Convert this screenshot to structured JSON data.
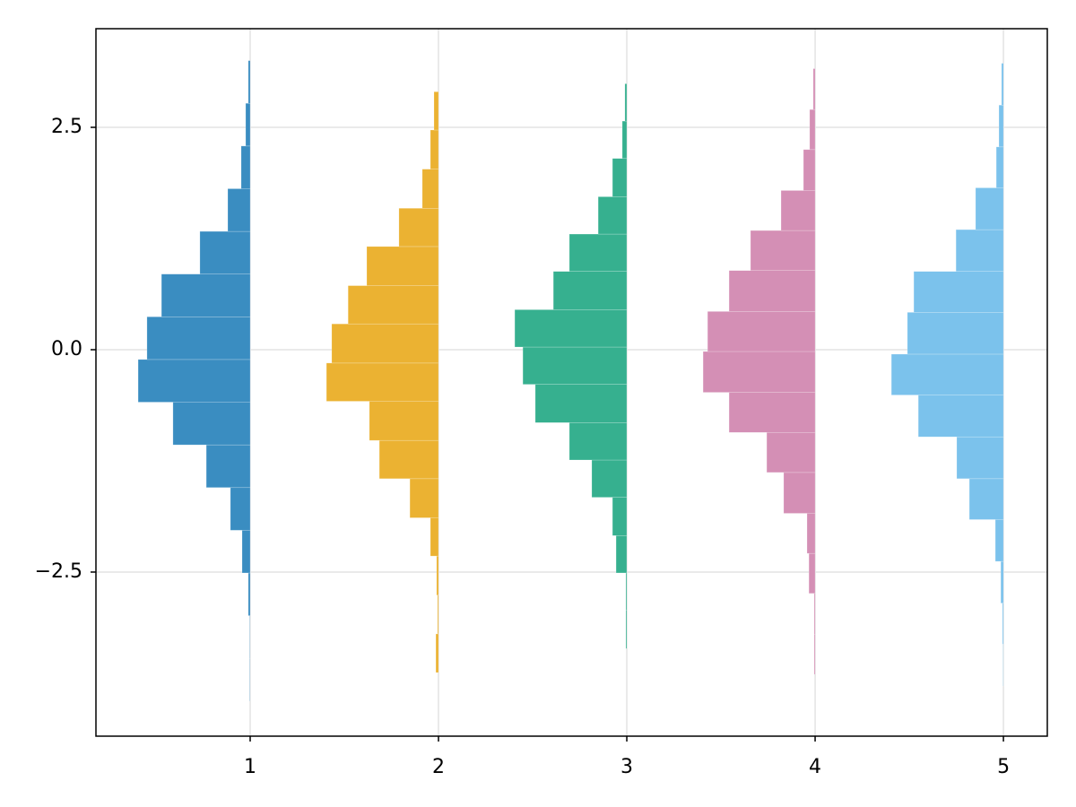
{
  "chart_data": {
    "type": "hist",
    "orientation": "horizontal",
    "xlim": [
      0.181,
      5.233
    ],
    "ylim": [
      -4.345,
      3.609
    ],
    "xticks": [
      1,
      2,
      3,
      4,
      5
    ],
    "yticks": [
      {
        "value": -2.5,
        "label": "−2.5"
      },
      {
        "value": 0,
        "label": "0.0"
      },
      2.5
    ],
    "grid": true,
    "series": [
      {
        "color": "#3a8dc1",
        "baseline": 1,
        "bins": [
          -3.95,
          -3.47,
          -2.99,
          -2.51,
          -2.03,
          -1.55,
          -1.07,
          -0.59,
          -0.11,
          0.37,
          0.85,
          1.33,
          1.81,
          2.29,
          2.77,
          3.25
        ],
        "values": [
          0.002,
          0.002,
          0.01,
          0.043,
          0.105,
          0.233,
          0.41,
          0.595,
          0.548,
          0.471,
          0.267,
          0.119,
          0.048,
          0.024,
          0.01
        ]
      },
      {
        "color": "#ebb232",
        "baseline": 2,
        "bins": [
          -3.63,
          -3.195,
          -2.76,
          -2.32,
          -1.89,
          -1.45,
          -1.02,
          -0.58,
          -0.15,
          0.29,
          0.72,
          1.16,
          1.59,
          2.03,
          2.47,
          2.9
        ],
        "values": [
          0.014,
          0.005,
          0.01,
          0.043,
          0.152,
          0.314,
          0.367,
          0.595,
          0.567,
          0.48,
          0.381,
          0.21,
          0.086,
          0.043,
          0.024
        ]
      },
      {
        "color": "#36b08f",
        "baseline": 3,
        "bins": [
          -3.36,
          -2.93,
          -2.51,
          -2.09,
          -1.66,
          -1.24,
          -0.82,
          -0.39,
          0.03,
          0.45,
          0.88,
          1.3,
          1.72,
          2.15,
          2.57,
          2.99
        ],
        "values": [
          0.005,
          0.005,
          0.057,
          0.076,
          0.186,
          0.305,
          0.486,
          0.552,
          0.595,
          0.39,
          0.305,
          0.152,
          0.076,
          0.024,
          0.01
        ]
      },
      {
        "color": "#d48fb5",
        "baseline": 4,
        "bins": [
          -3.65,
          -3.2,
          -2.74,
          -2.29,
          -1.84,
          -1.38,
          -0.93,
          -0.48,
          -0.02,
          0.43,
          0.89,
          1.34,
          1.79,
          2.25,
          2.7,
          3.16
        ],
        "values": [
          0.005,
          0.005,
          0.033,
          0.043,
          0.167,
          0.257,
          0.457,
          0.595,
          0.571,
          0.457,
          0.343,
          0.181,
          0.062,
          0.029,
          0.01
        ]
      },
      {
        "color": "#7bc2ec",
        "baseline": 5,
        "bins": [
          -3.78,
          -3.31,
          -2.85,
          -2.38,
          -1.91,
          -1.45,
          -0.98,
          -0.51,
          -0.05,
          0.42,
          0.88,
          1.35,
          1.82,
          2.28,
          2.75,
          3.22
        ],
        "values": [
          0.002,
          0.005,
          0.014,
          0.043,
          0.181,
          0.248,
          0.452,
          0.595,
          0.51,
          0.476,
          0.252,
          0.148,
          0.038,
          0.024,
          0.01
        ]
      }
    ]
  }
}
